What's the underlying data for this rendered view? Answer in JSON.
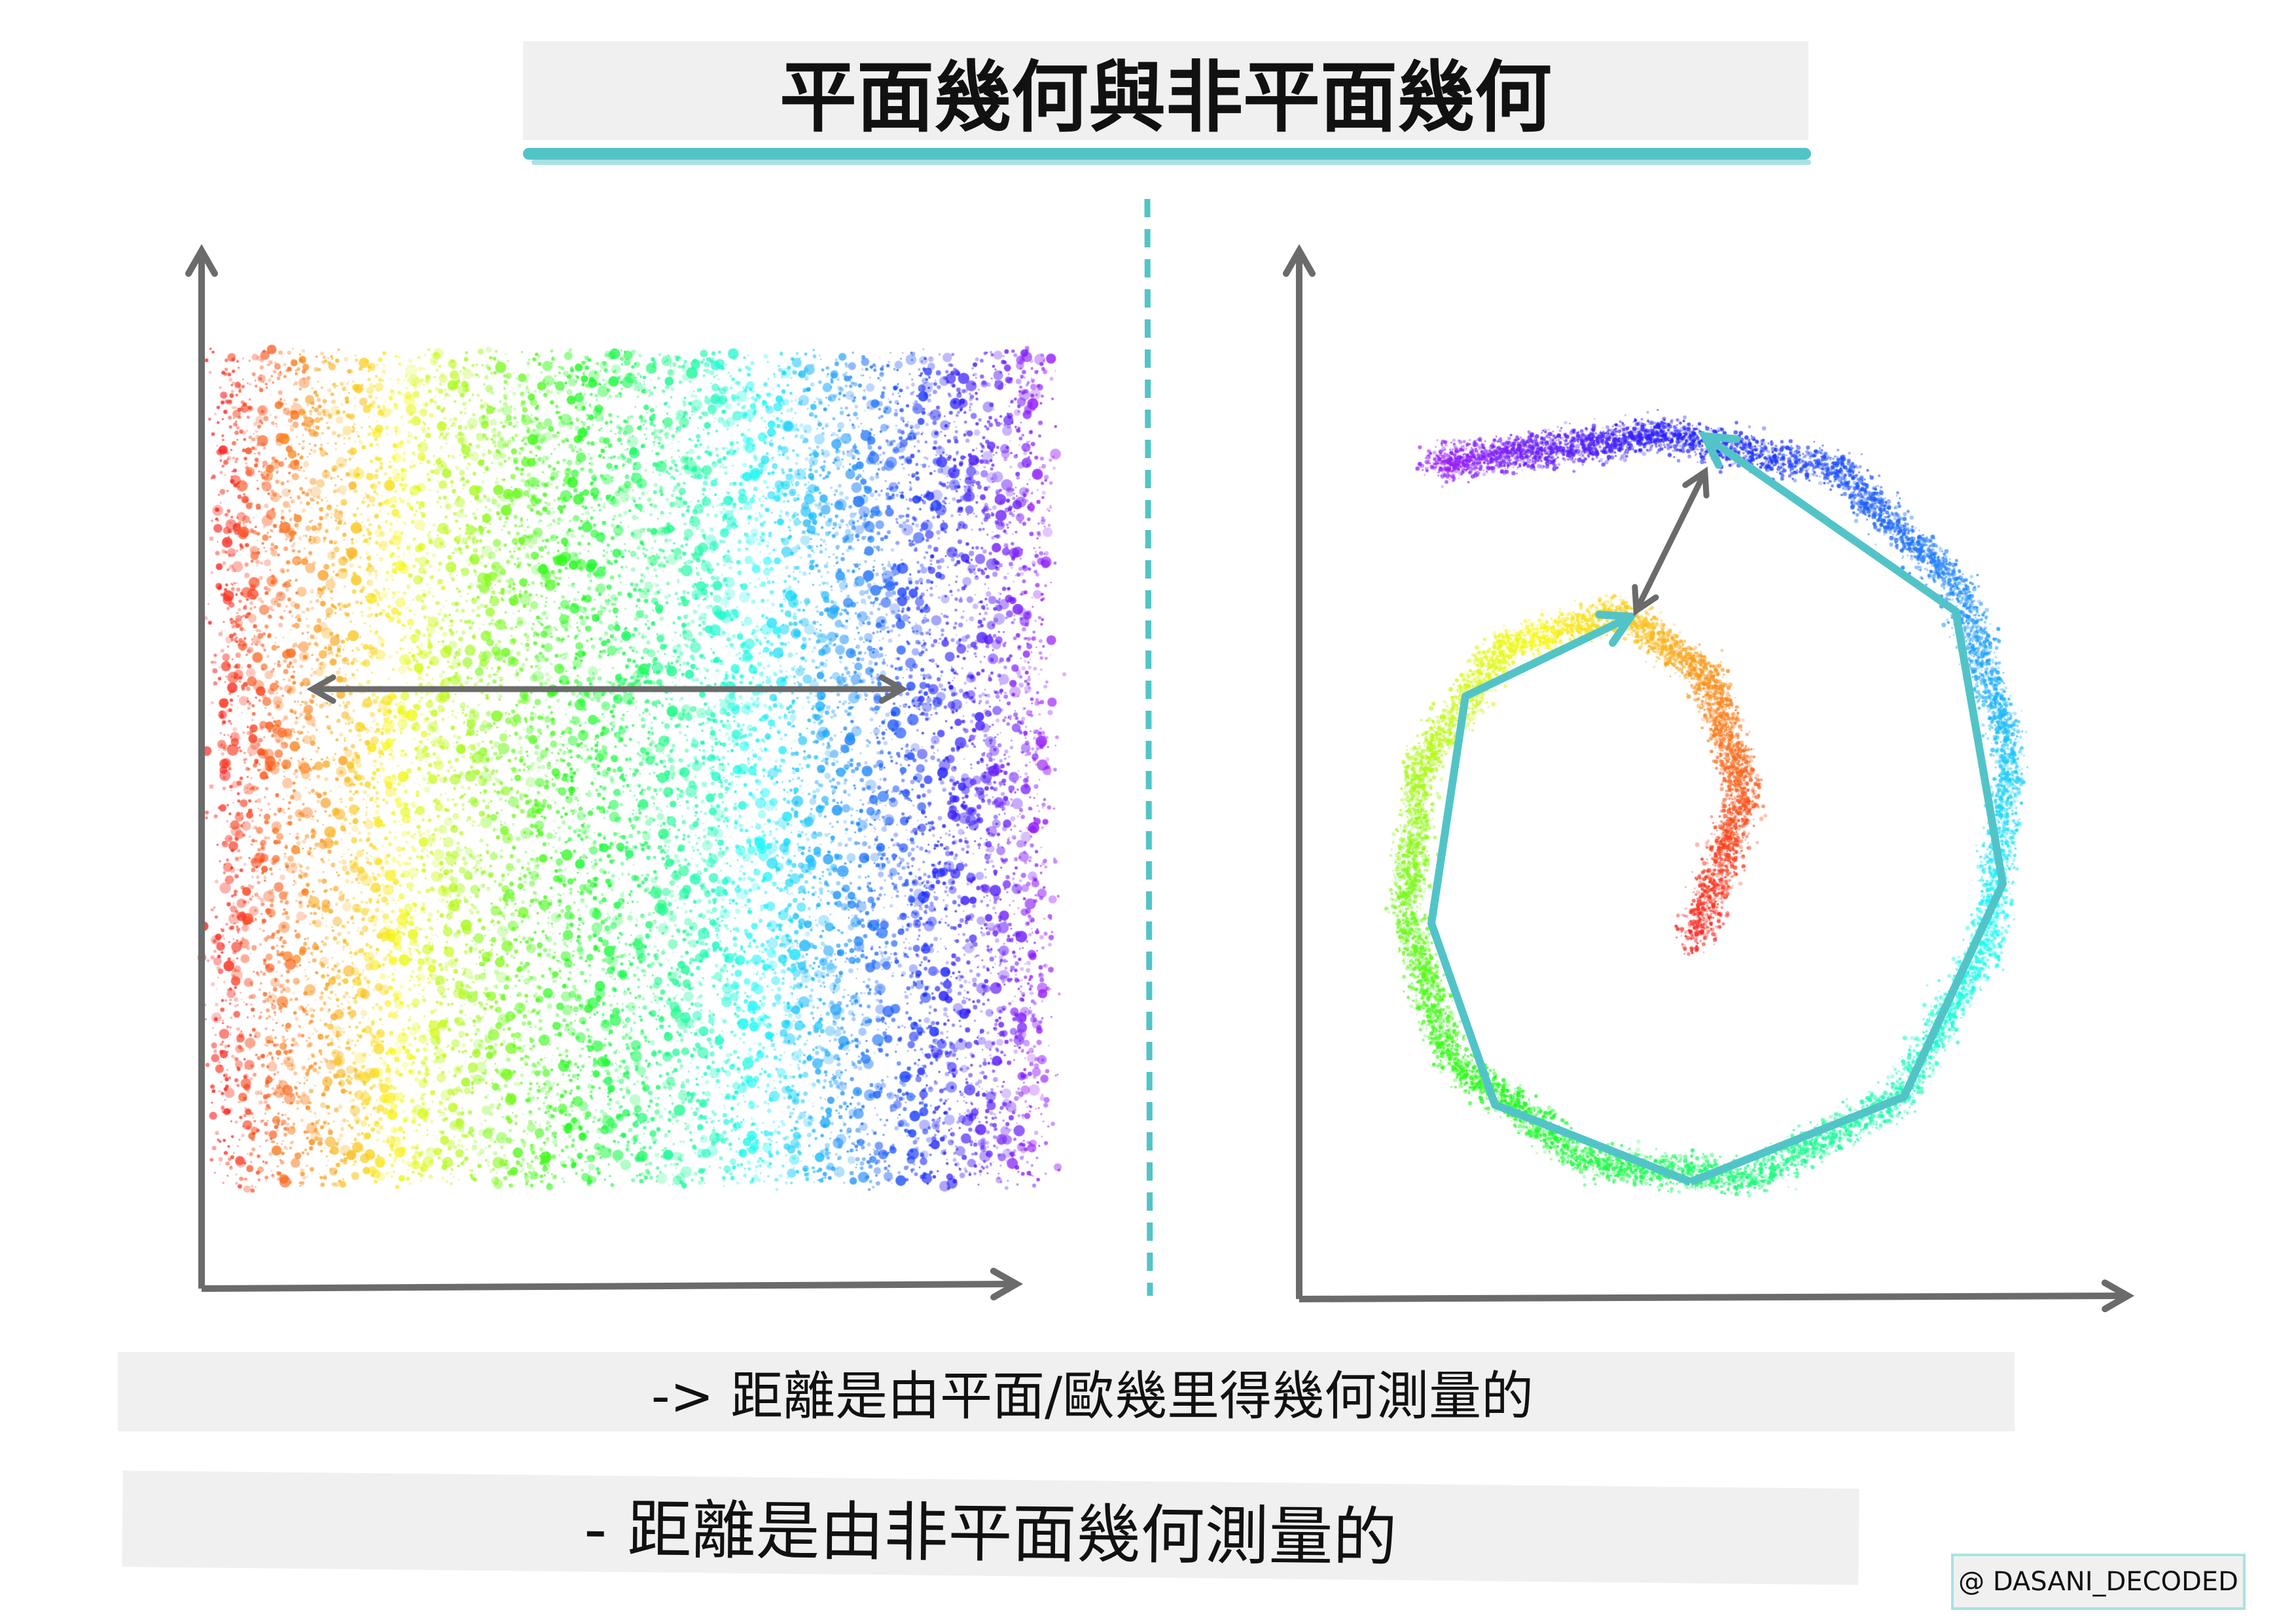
{
  "title": "平面幾何與非平面幾何",
  "captions": {
    "flat": "-> 距離是由平面/歐幾里得幾何測量的",
    "non_flat": "- 距離是由非平面幾何測量的"
  },
  "watermark": "@ DASANI_DECODED",
  "colors": {
    "accent": "#52c4c8",
    "axis": "#6b6b6b",
    "caption_bg": "#f0f0f0",
    "spectrum": [
      "#f44336",
      "#ff8c1a",
      "#f5c518",
      "#9be52a",
      "#2ee6e6",
      "#8a3ff0"
    ]
  }
}
